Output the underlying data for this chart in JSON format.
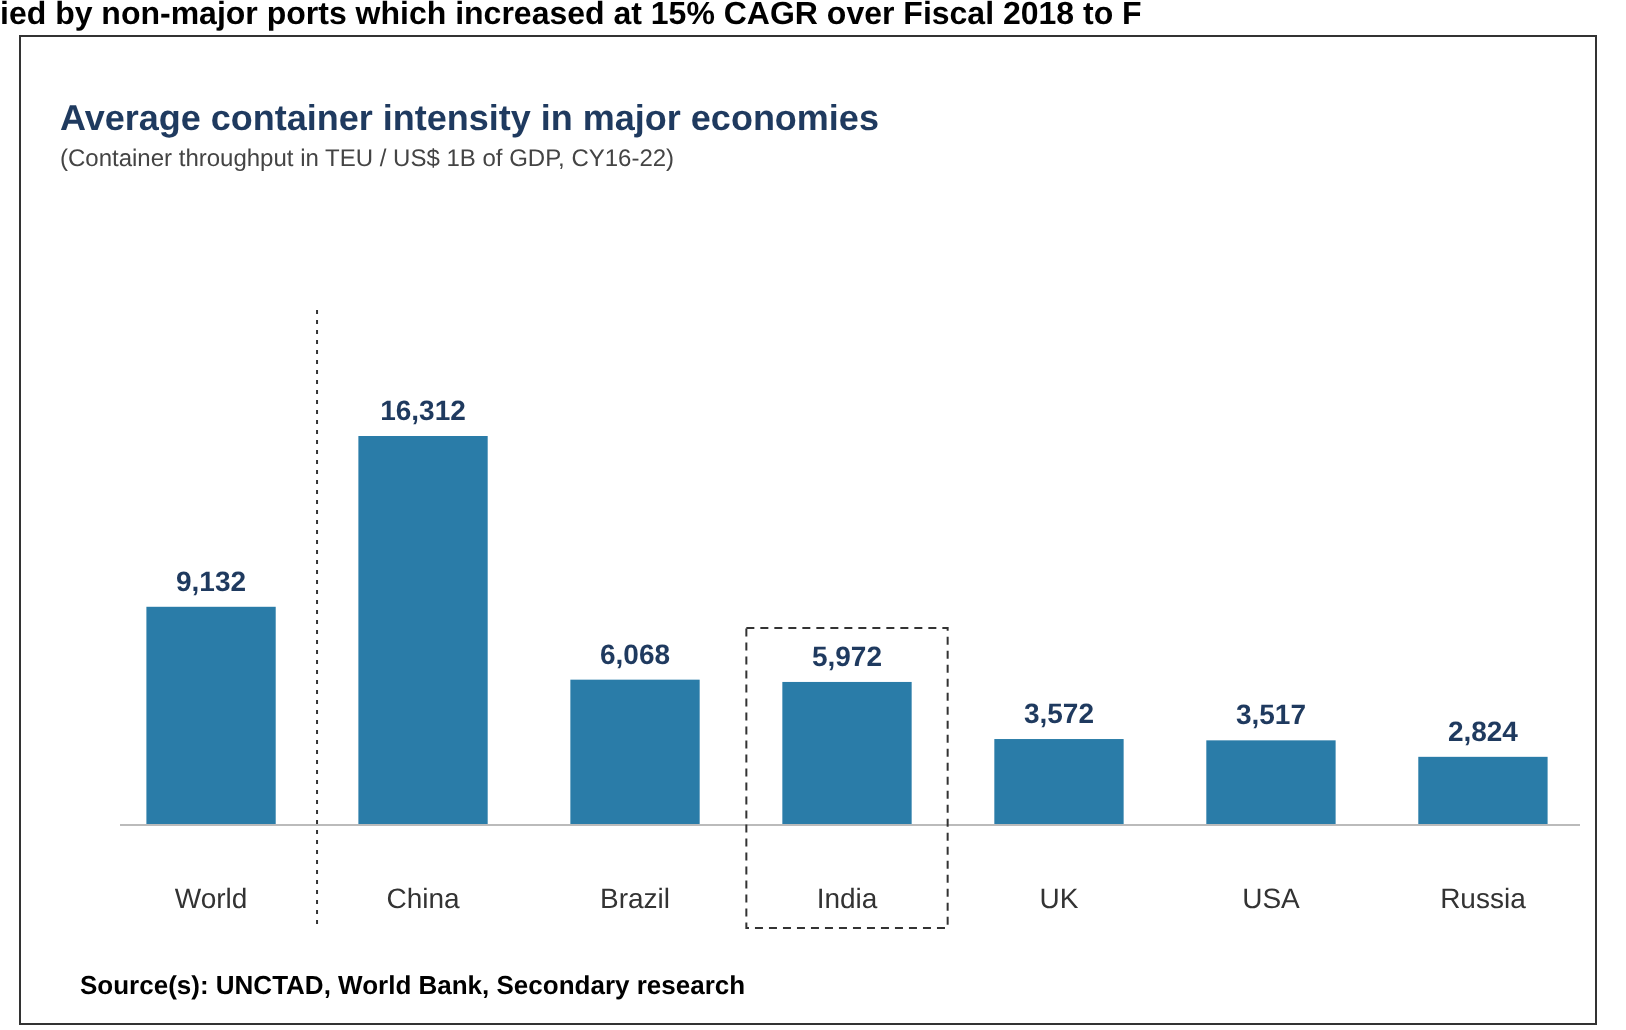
{
  "chart_data": {
    "type": "bar",
    "title": "Average container intensity in major economies",
    "subtitle": "(Container throughput in TEU / US$ 1B of GDP, CY16-22)",
    "categories": [
      "World",
      "China",
      "Brazil",
      "India",
      "UK",
      "USA",
      "Russia"
    ],
    "values": [
      9132,
      16312,
      6068,
      5972,
      3572,
      3517,
      2824
    ],
    "value_labels": [
      "9,132",
      "16,312",
      "6,068",
      "5,972",
      "3,572",
      "3,517",
      "2,824"
    ],
    "color": "#2a7ca8",
    "annotations": [
      "ied by non-major ports which increased at 15% CAGR over Fiscal 2018 to F",
      "Source(s): UNCTAD, World Bank, Secondary research"
    ]
  }
}
